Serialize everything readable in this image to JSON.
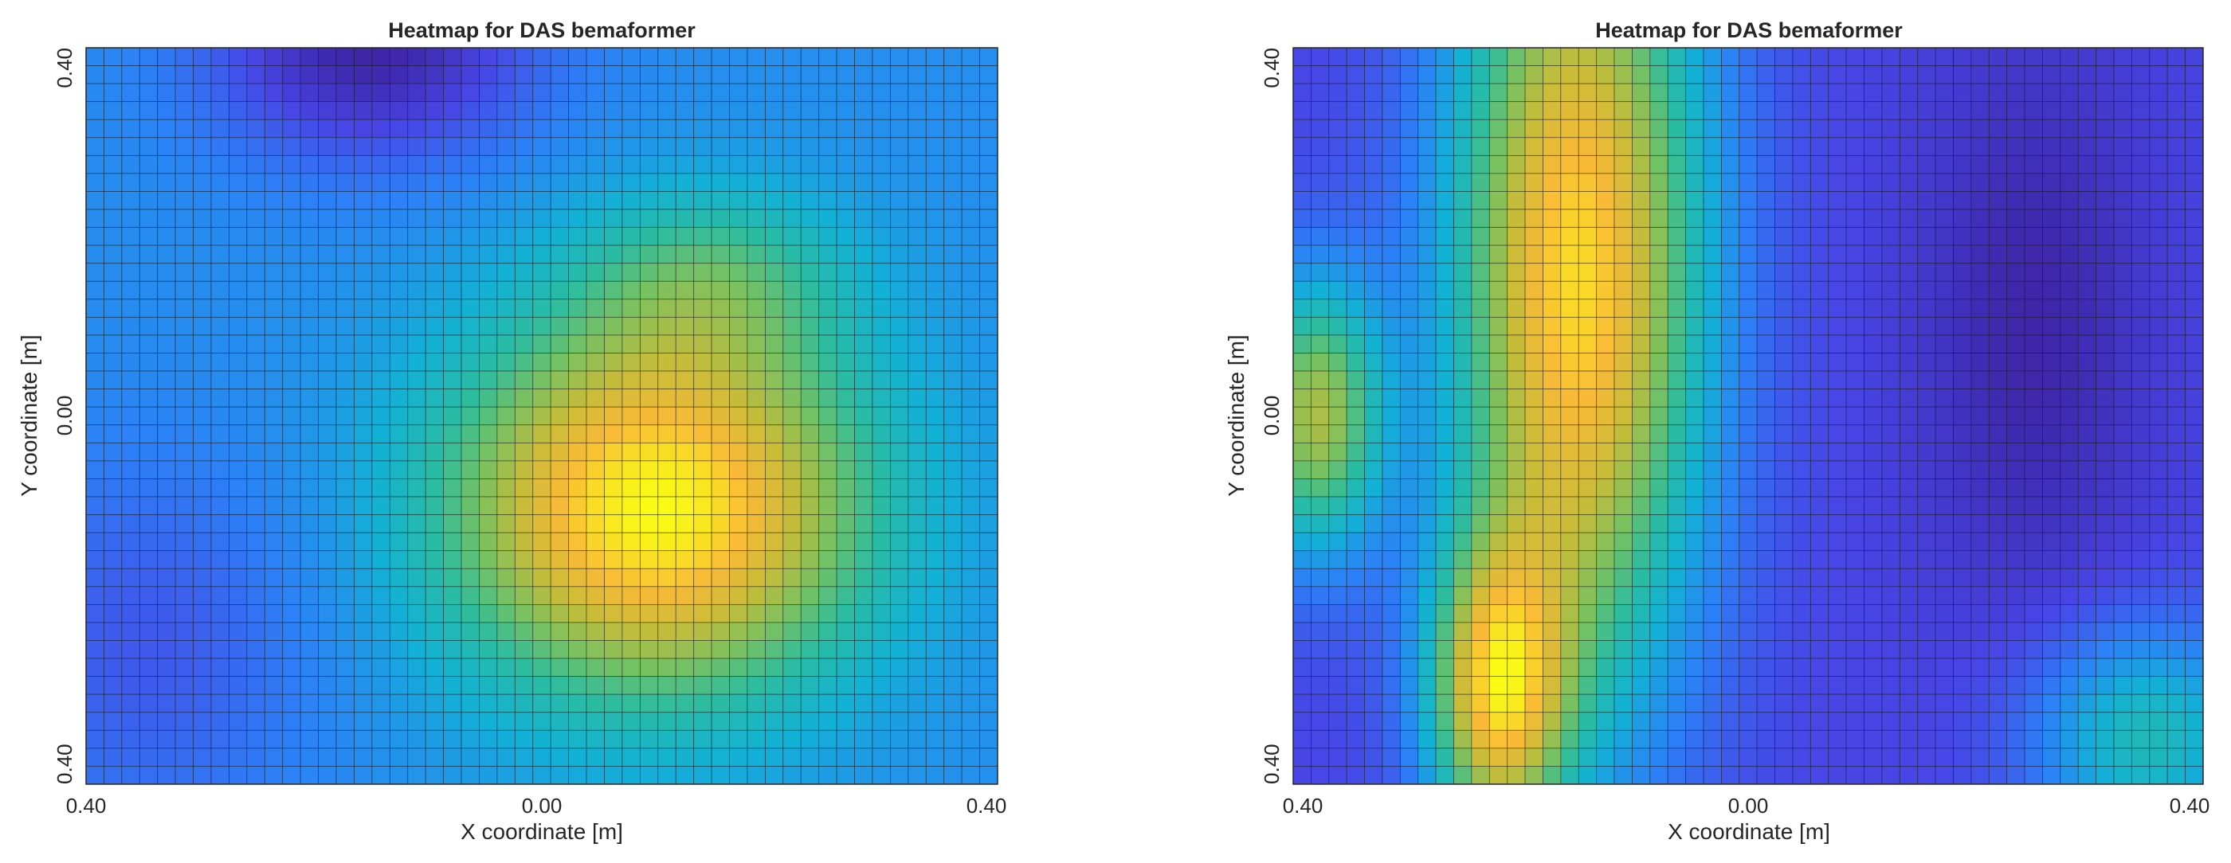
{
  "chart_data": [
    {
      "type": "heatmap",
      "title": "Heatmap for DAS bemaformer",
      "xlabel": "X coordinate [m]",
      "ylabel": "Y coordinate [m]",
      "xlim": [
        -0.4,
        0.4
      ],
      "ylim": [
        -0.4,
        0.4
      ],
      "xticks": [
        "0.40",
        "0.00",
        "0.40"
      ],
      "yticks": [
        "0.40",
        "0.00",
        "0.40"
      ],
      "grid_cols": 51,
      "grid_rows": 41,
      "colormap": "parula",
      "field": {
        "base": 0.32,
        "peaks": [
          {
            "x": 0.1,
            "y": -0.1,
            "amp": 0.7,
            "sx": 0.18,
            "sy": 0.2
          },
          {
            "x": 0.15,
            "y": 0.15,
            "amp": 0.2,
            "sx": 0.12,
            "sy": 0.1
          },
          {
            "x": -0.15,
            "y": 0.4,
            "amp": -0.28,
            "sx": 0.14,
            "sy": 0.12
          },
          {
            "x": -0.35,
            "y": -0.25,
            "amp": -0.12,
            "sx": 0.15,
            "sy": 0.2
          }
        ]
      }
    },
    {
      "type": "heatmap",
      "title": "Heatmap for DAS bemaformer",
      "xlabel": "X coordinate [m]",
      "ylabel": "Y coordinate [m]",
      "xlim": [
        -0.4,
        0.4
      ],
      "ylim": [
        -0.4,
        0.4
      ],
      "xticks": [
        "0.40",
        "0.00",
        "0.40"
      ],
      "yticks": [
        "0.40",
        "0.00",
        "0.40"
      ],
      "grid_cols": 51,
      "grid_rows": 41,
      "colormap": "parula",
      "field": {
        "base": 0.15,
        "peaks": [
          {
            "x": -0.15,
            "y": 0.15,
            "amp": 0.85,
            "sx": 0.11,
            "sy": 0.45
          },
          {
            "x": -0.22,
            "y": -0.3,
            "amp": 0.7,
            "sx": 0.06,
            "sy": 0.16
          },
          {
            "x": -0.38,
            "y": 0.0,
            "amp": 0.6,
            "sx": 0.06,
            "sy": 0.15
          },
          {
            "x": 0.35,
            "y": -0.35,
            "amp": 0.35,
            "sx": 0.1,
            "sy": 0.12
          },
          {
            "x": 0.25,
            "y": 0.1,
            "amp": -0.12,
            "sx": 0.1,
            "sy": 0.3
          }
        ]
      }
    }
  ]
}
